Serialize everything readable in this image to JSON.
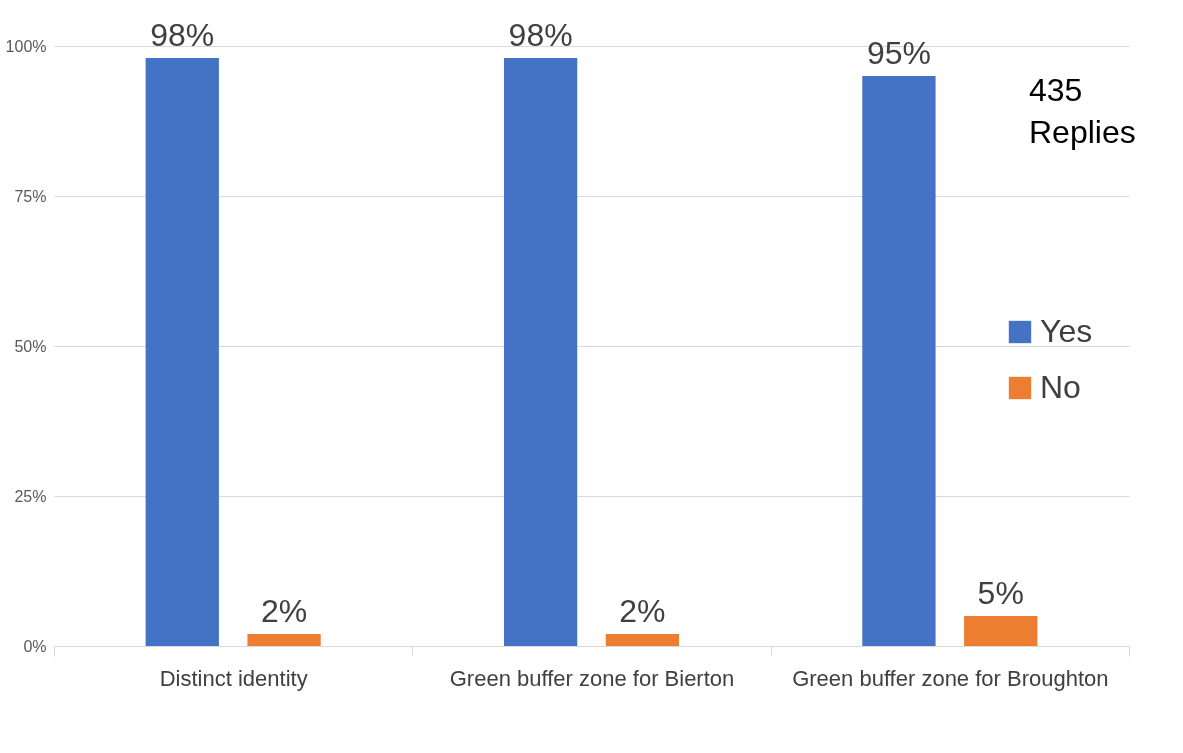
{
  "chart_data": {
    "type": "bar",
    "categories": [
      "Distinct identity",
      "Green buffer zone for Bierton",
      "Green buffer zone for Broughton"
    ],
    "series": [
      {
        "name": "Yes",
        "color": "#4472c4",
        "values": [
          98,
          98,
          95
        ],
        "value_labels": [
          "98%",
          "98%",
          "95%"
        ]
      },
      {
        "name": "No",
        "color": "#ed7d31",
        "values": [
          2,
          2,
          5
        ],
        "value_labels": [
          "2%",
          "2%",
          "5%"
        ]
      }
    ],
    "ylim": [
      0,
      100
    ],
    "yticks": [
      {
        "value": 0,
        "label": "0%"
      },
      {
        "value": 25,
        "label": "25%"
      },
      {
        "value": 50,
        "label": "50%"
      },
      {
        "value": 75,
        "label": "75%"
      },
      {
        "value": 100,
        "label": "100%"
      }
    ],
    "grid": "y",
    "legend": "right",
    "annotations": [
      "435 Replies"
    ]
  }
}
